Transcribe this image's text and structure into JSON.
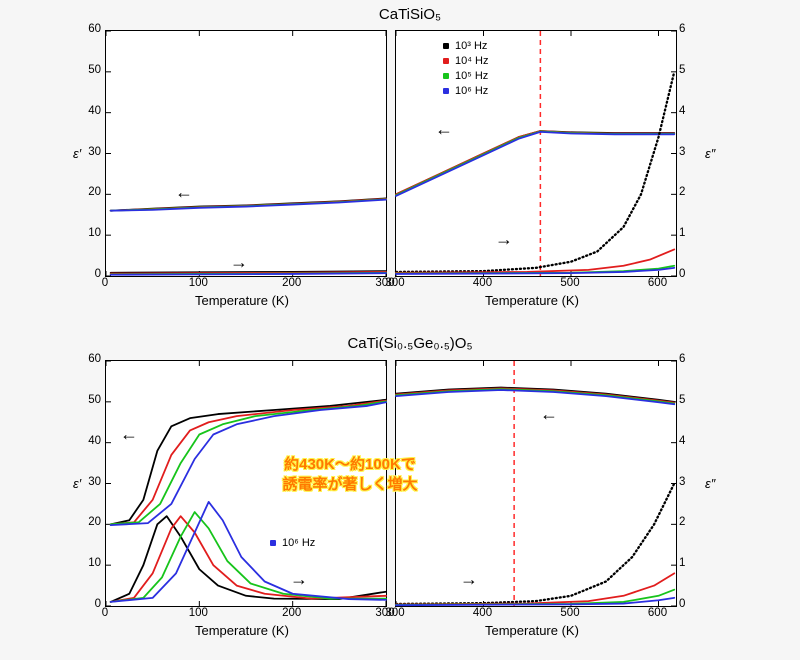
{
  "background_color": "#f6f6f6",
  "plot_bg": "#ffffff",
  "border_color": "#000000",
  "grid_color": "#e0e0e0",
  "series_colors": {
    "hz1e3": "#000000",
    "hz1e4": "#e11d1d",
    "hz1e5": "#17c41b",
    "hz1e6": "#2b2fe0"
  },
  "vline_color": "#ff2a2a",
  "titles": {
    "top": "CaTiSiO₅",
    "bottom": "CaTi(Si₀.₅Ge₀.₅)O₅"
  },
  "callout": {
    "line1": "約430K〜約100Kで",
    "line2": "誘電率が著しく増大"
  },
  "legend": {
    "hz1e3": "10³ Hz",
    "hz1e4": "10⁴ Hz",
    "hz1e5": "10⁵ Hz",
    "hz1e6": "10⁶ Hz"
  },
  "axes": {
    "eps_prime": "ε′",
    "eps_dprime": "ε″",
    "temp": "Temperature (K)"
  },
  "panels": {
    "A": {
      "xlim": [
        0,
        300
      ],
      "xticks": [
        0,
        100,
        200,
        300
      ],
      "ylim_left": [
        0,
        60
      ],
      "yticks_left": [
        0,
        10,
        20,
        30,
        40,
        50,
        60
      ],
      "vline": null,
      "series_upper": {
        "hz1e3": [
          [
            5,
            16
          ],
          [
            50,
            16.5
          ],
          [
            100,
            17
          ],
          [
            150,
            17.3
          ],
          [
            200,
            17.8
          ],
          [
            250,
            18.3
          ],
          [
            300,
            19
          ]
        ],
        "hz1e4": [
          [
            5,
            16
          ],
          [
            50,
            16.4
          ],
          [
            100,
            16.9
          ],
          [
            150,
            17.2
          ],
          [
            200,
            17.7
          ],
          [
            250,
            18.2
          ],
          [
            300,
            18.9
          ]
        ],
        "hz1e5": [
          [
            5,
            16
          ],
          [
            50,
            16.3
          ],
          [
            100,
            16.8
          ],
          [
            150,
            17.1
          ],
          [
            200,
            17.6
          ],
          [
            250,
            18.1
          ],
          [
            300,
            18.8
          ]
        ],
        "hz1e6": [
          [
            5,
            16
          ],
          [
            50,
            16.2
          ],
          [
            100,
            16.7
          ],
          [
            150,
            17.0
          ],
          [
            200,
            17.5
          ],
          [
            250,
            18.0
          ],
          [
            300,
            18.7
          ]
        ]
      },
      "series_lower": {
        "hz1e3": [
          [
            5,
            0.8
          ],
          [
            100,
            0.9
          ],
          [
            200,
            1.0
          ],
          [
            300,
            1.2
          ]
        ],
        "hz1e4": [
          [
            5,
            0.6
          ],
          [
            100,
            0.7
          ],
          [
            200,
            0.8
          ],
          [
            300,
            1.0
          ]
        ],
        "hz1e5": [
          [
            5,
            0.4
          ],
          [
            100,
            0.5
          ],
          [
            200,
            0.6
          ],
          [
            300,
            0.8
          ]
        ],
        "hz1e6": [
          [
            5,
            0.3
          ],
          [
            100,
            0.4
          ],
          [
            200,
            0.5
          ],
          [
            300,
            0.7
          ]
        ]
      }
    },
    "B": {
      "xlim": [
        300,
        620
      ],
      "xticks": [
        300,
        400,
        500,
        600
      ],
      "ylim_left": [
        0,
        60
      ],
      "ylim_right": [
        0,
        6
      ],
      "yticks_right": [
        0,
        1,
        2,
        3,
        4,
        5,
        6
      ],
      "vline": 465,
      "series_upper": {
        "hz1e3": [
          [
            300,
            20
          ],
          [
            350,
            25
          ],
          [
            400,
            30
          ],
          [
            440,
            34
          ],
          [
            465,
            35.5
          ],
          [
            500,
            35.2
          ],
          [
            550,
            35
          ],
          [
            600,
            35
          ],
          [
            618,
            35
          ]
        ],
        "hz1e4": [
          [
            300,
            20
          ],
          [
            350,
            25
          ],
          [
            400,
            30
          ],
          [
            440,
            34
          ],
          [
            465,
            35.5
          ],
          [
            500,
            35.1
          ],
          [
            550,
            34.9
          ],
          [
            600,
            34.9
          ],
          [
            618,
            34.9
          ]
        ],
        "hz1e5": [
          [
            300,
            19.8
          ],
          [
            350,
            24.8
          ],
          [
            400,
            29.8
          ],
          [
            440,
            33.8
          ],
          [
            465,
            35.4
          ],
          [
            500,
            35
          ],
          [
            550,
            34.8
          ],
          [
            600,
            34.8
          ],
          [
            618,
            34.8
          ]
        ],
        "hz1e6": [
          [
            300,
            19.6
          ],
          [
            350,
            24.6
          ],
          [
            400,
            29.6
          ],
          [
            440,
            33.6
          ],
          [
            465,
            35.3
          ],
          [
            500,
            34.9
          ],
          [
            550,
            34.7
          ],
          [
            600,
            34.7
          ],
          [
            618,
            34.7
          ]
        ]
      },
      "series_eps2": {
        "hz1e3": [
          [
            300,
            0.1
          ],
          [
            400,
            0.12
          ],
          [
            460,
            0.2
          ],
          [
            500,
            0.35
          ],
          [
            530,
            0.6
          ],
          [
            560,
            1.2
          ],
          [
            580,
            2.0
          ],
          [
            600,
            3.4
          ],
          [
            618,
            5.0
          ]
        ],
        "hz1e4": [
          [
            300,
            0.08
          ],
          [
            450,
            0.1
          ],
          [
            520,
            0.15
          ],
          [
            560,
            0.25
          ],
          [
            590,
            0.4
          ],
          [
            618,
            0.65
          ]
        ],
        "hz1e5": [
          [
            300,
            0.06
          ],
          [
            500,
            0.08
          ],
          [
            560,
            0.12
          ],
          [
            600,
            0.18
          ],
          [
            618,
            0.25
          ]
        ],
        "hz1e6": [
          [
            300,
            0.05
          ],
          [
            500,
            0.07
          ],
          [
            560,
            0.1
          ],
          [
            600,
            0.15
          ],
          [
            618,
            0.2
          ]
        ]
      }
    },
    "C": {
      "xlim": [
        0,
        300
      ],
      "xticks": [
        0,
        100,
        200,
        300
      ],
      "ylim_left": [
        0,
        60
      ],
      "yticks_left": [
        0,
        10,
        20,
        30,
        40,
        50,
        60
      ],
      "series_upper": {
        "hz1e3": [
          [
            5,
            20
          ],
          [
            25,
            21
          ],
          [
            40,
            26
          ],
          [
            55,
            38
          ],
          [
            70,
            44
          ],
          [
            90,
            46
          ],
          [
            120,
            47
          ],
          [
            180,
            48
          ],
          [
            240,
            49
          ],
          [
            300,
            50.5
          ]
        ],
        "hz1e4": [
          [
            5,
            20
          ],
          [
            30,
            20.5
          ],
          [
            50,
            26
          ],
          [
            70,
            37
          ],
          [
            90,
            43
          ],
          [
            110,
            45
          ],
          [
            140,
            46.5
          ],
          [
            200,
            48
          ],
          [
            260,
            49
          ],
          [
            300,
            50.3
          ]
        ],
        "hz1e5": [
          [
            5,
            20
          ],
          [
            35,
            20.5
          ],
          [
            58,
            25
          ],
          [
            80,
            35
          ],
          [
            100,
            42
          ],
          [
            125,
            44.5
          ],
          [
            160,
            46.5
          ],
          [
            220,
            48
          ],
          [
            270,
            49
          ],
          [
            300,
            50.1
          ]
        ],
        "hz1e6": [
          [
            5,
            19.8
          ],
          [
            45,
            20.3
          ],
          [
            70,
            25
          ],
          [
            95,
            36
          ],
          [
            115,
            42
          ],
          [
            140,
            44.5
          ],
          [
            180,
            46.5
          ],
          [
            230,
            48
          ],
          [
            280,
            49
          ],
          [
            300,
            49.9
          ]
        ]
      },
      "series_lower": {
        "hz1e3": [
          [
            5,
            1
          ],
          [
            25,
            3
          ],
          [
            40,
            10
          ],
          [
            55,
            20
          ],
          [
            65,
            22
          ],
          [
            80,
            17
          ],
          [
            100,
            9
          ],
          [
            120,
            5
          ],
          [
            150,
            2.5
          ],
          [
            180,
            1.8
          ],
          [
            250,
            1.7
          ],
          [
            300,
            3.5
          ]
        ],
        "hz1e4": [
          [
            5,
            1
          ],
          [
            30,
            2
          ],
          [
            50,
            8
          ],
          [
            70,
            19
          ],
          [
            80,
            22
          ],
          [
            95,
            18
          ],
          [
            115,
            10
          ],
          [
            140,
            5
          ],
          [
            170,
            3
          ],
          [
            220,
            1.8
          ],
          [
            300,
            2.5
          ]
        ],
        "hz1e5": [
          [
            5,
            1
          ],
          [
            40,
            2
          ],
          [
            60,
            7
          ],
          [
            80,
            17
          ],
          [
            95,
            23
          ],
          [
            110,
            19
          ],
          [
            130,
            11
          ],
          [
            155,
            5.5
          ],
          [
            190,
            3
          ],
          [
            240,
            1.8
          ],
          [
            300,
            1.8
          ]
        ],
        "hz1e6": [
          [
            5,
            1
          ],
          [
            50,
            2
          ],
          [
            75,
            8
          ],
          [
            95,
            18
          ],
          [
            110,
            25.5
          ],
          [
            125,
            21
          ],
          [
            145,
            12
          ],
          [
            170,
            6
          ],
          [
            200,
            3.0
          ],
          [
            260,
            1.7
          ],
          [
            300,
            1.5
          ]
        ]
      }
    },
    "D": {
      "xlim": [
        300,
        620
      ],
      "xticks": [
        300,
        400,
        500,
        600
      ],
      "ylim_left": [
        0,
        60
      ],
      "ylim_right": [
        0,
        6
      ],
      "yticks_right": [
        0,
        1,
        2,
        3,
        4,
        5,
        6
      ],
      "vline": 435,
      "series_upper": {
        "hz1e3": [
          [
            300,
            52
          ],
          [
            360,
            53
          ],
          [
            420,
            53.5
          ],
          [
            480,
            53
          ],
          [
            540,
            52
          ],
          [
            600,
            50.5
          ],
          [
            618,
            50
          ]
        ],
        "hz1e4": [
          [
            300,
            51.8
          ],
          [
            360,
            52.8
          ],
          [
            420,
            53.3
          ],
          [
            480,
            52.8
          ],
          [
            540,
            51.8
          ],
          [
            600,
            50.3
          ],
          [
            618,
            49.8
          ]
        ],
        "hz1e5": [
          [
            300,
            51.6
          ],
          [
            360,
            52.6
          ],
          [
            420,
            53.1
          ],
          [
            480,
            52.6
          ],
          [
            540,
            51.6
          ],
          [
            600,
            50.1
          ],
          [
            618,
            49.6
          ]
        ],
        "hz1e6": [
          [
            300,
            51.4
          ],
          [
            360,
            52.4
          ],
          [
            420,
            52.9
          ],
          [
            480,
            52.4
          ],
          [
            540,
            51.4
          ],
          [
            600,
            49.9
          ],
          [
            618,
            49.4
          ]
        ]
      },
      "series_eps2": {
        "hz1e3": [
          [
            300,
            0.05
          ],
          [
            400,
            0.07
          ],
          [
            460,
            0.12
          ],
          [
            500,
            0.25
          ],
          [
            540,
            0.6
          ],
          [
            570,
            1.2
          ],
          [
            595,
            2.0
          ],
          [
            618,
            3.0
          ]
        ],
        "hz1e4": [
          [
            300,
            0.04
          ],
          [
            450,
            0.06
          ],
          [
            520,
            0.12
          ],
          [
            560,
            0.25
          ],
          [
            595,
            0.5
          ],
          [
            618,
            0.8
          ]
        ],
        "hz1e5": [
          [
            300,
            0.03
          ],
          [
            500,
            0.05
          ],
          [
            560,
            0.1
          ],
          [
            600,
            0.25
          ],
          [
            618,
            0.4
          ]
        ],
        "hz1e6": [
          [
            300,
            0.02
          ],
          [
            500,
            0.04
          ],
          [
            560,
            0.06
          ],
          [
            600,
            0.14
          ],
          [
            618,
            0.2
          ]
        ]
      }
    }
  },
  "typography": {
    "title_fontsize": 15,
    "axis_label_fontsize": 13,
    "tick_fontsize": 11.5,
    "legend_fontsize": 11,
    "callout_fontsize": 15
  },
  "line_width": 1.8
}
